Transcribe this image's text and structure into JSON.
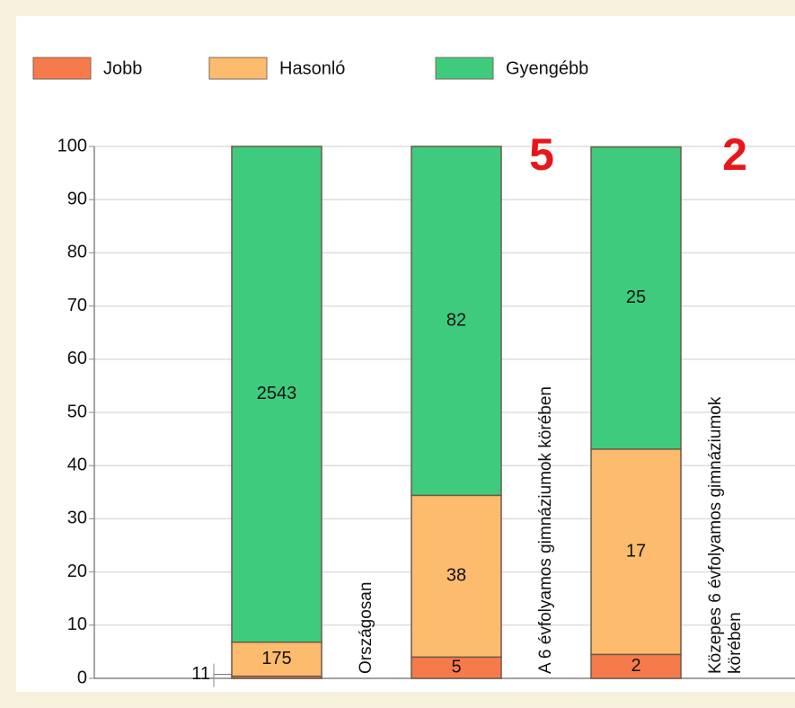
{
  "chart_data": {
    "type": "stacked_bar_percent",
    "categories": [
      "Országosan",
      "A 6 évfolyamos gimnáziumok körében",
      "Közepes 6 évfolyamos gimnáziumok körében"
    ],
    "series": [
      {
        "name": "Jobb",
        "color": "#f77a4a",
        "values": [
          0.4,
          4,
          4.5
        ],
        "counts": [
          11,
          5,
          2
        ]
      },
      {
        "name": "Hasonló",
        "color": "#fdbb6e",
        "values": [
          6.4,
          30.4,
          38.6
        ],
        "counts": [
          175,
          38,
          17
        ]
      },
      {
        "name": "Gyengébb",
        "color": "#3fcb7e",
        "values": [
          93.2,
          65.6,
          56.8
        ],
        "counts": [
          2543,
          82,
          25
        ]
      }
    ],
    "ylim": [
      0,
      100
    ],
    "yticks": [
      0,
      10,
      20,
      30,
      40,
      50,
      60,
      70,
      80,
      90,
      100
    ],
    "grid": true,
    "annotations": [
      "5",
      "2"
    ]
  }
}
